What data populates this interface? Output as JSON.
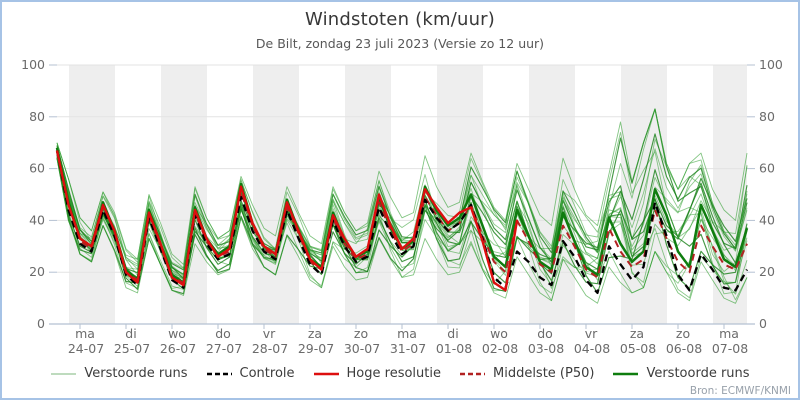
{
  "window": {
    "border_color": "#a6c3e6",
    "background": "#ffffff"
  },
  "header": {
    "title": "Windstoten (km/uur)",
    "subtitle": "De Bilt, zondag 23 juli 2023 (Versie zo 12 uur)"
  },
  "attribution": {
    "text": "Bron: ECMWF/KNMI"
  },
  "legend": {
    "items": [
      {
        "label": "Verstoorde runs",
        "color": "#a9cfa9",
        "dash": "",
        "width": 1.6
      },
      {
        "label": "Controle",
        "color": "#000000",
        "dash": "5 3",
        "width": 2.6
      },
      {
        "label": "Hoge resolutie",
        "color": "#dd0f0f",
        "dash": "",
        "width": 2.6
      },
      {
        "label": "Middelste (P50)",
        "color": "#b22222",
        "dash": "5 3",
        "width": 2.6
      },
      {
        "label": "Verstoorde runs",
        "color": "#0f7d0f",
        "dash": "",
        "width": 2.6
      }
    ]
  },
  "chart_data": {
    "type": "line",
    "title": "Windstoten (km/uur)",
    "subtitle": "De Bilt, zondag 23 juli 2023 (Versie zo 12 uur)",
    "ylabel": "km/uur",
    "ylim": [
      0,
      100
    ],
    "y_ticks": [
      0,
      20,
      40,
      60,
      80,
      100
    ],
    "hours_step": 6,
    "total_hours": 360,
    "first_day_boundary_hour": 12,
    "x_day_labels": [
      {
        "day": "ma",
        "date": "24-07"
      },
      {
        "day": "di",
        "date": "25-07"
      },
      {
        "day": "wo",
        "date": "26-07"
      },
      {
        "day": "do",
        "date": "27-07"
      },
      {
        "day": "vr",
        "date": "28-07"
      },
      {
        "day": "za",
        "date": "29-07"
      },
      {
        "day": "zo",
        "date": "30-07"
      },
      {
        "day": "ma",
        "date": "31-07"
      },
      {
        "day": "di",
        "date": "01-08"
      },
      {
        "day": "wo",
        "date": "02-08"
      },
      {
        "day": "do",
        "date": "03-08"
      },
      {
        "day": "vr",
        "date": "04-08"
      },
      {
        "day": "za",
        "date": "05-08"
      },
      {
        "day": "zo",
        "date": "06-08"
      },
      {
        "day": "ma",
        "date": "07-08"
      }
    ],
    "shaded_day_indexes": [
      0,
      2,
      4,
      6,
      8,
      10,
      12,
      14
    ],
    "series": {
      "hoge_resolutie": [
        67,
        46,
        33,
        30,
        46,
        36,
        20,
        16,
        43,
        31,
        18,
        15,
        44,
        33,
        26,
        29,
        53,
        39,
        30,
        27,
        47,
        36,
        25,
        21,
        42,
        33,
        26,
        29,
        50,
        38,
        29,
        33,
        52,
        45,
        39,
        43,
        45,
        32,
        16,
        13,
        40
      ],
      "controle": [
        67,
        44,
        31,
        28,
        44,
        34,
        19,
        15,
        41,
        29,
        17,
        14,
        42,
        31,
        25,
        27,
        49,
        36,
        28,
        25,
        44,
        33,
        23,
        19,
        40,
        30,
        24,
        26,
        45,
        35,
        27,
        30,
        48,
        41,
        36,
        39,
        46,
        33,
        18,
        14,
        28,
        24,
        18,
        15,
        32,
        26,
        17,
        12,
        30,
        23,
        17,
        22,
        47,
        34,
        19,
        13,
        27,
        21,
        14,
        13,
        21
      ],
      "middelste_p50": [
        67,
        45,
        32,
        29,
        45,
        35,
        20,
        17,
        42,
        30,
        18,
        16,
        43,
        32,
        26,
        28,
        51,
        38,
        29,
        26,
        45,
        35,
        24,
        21,
        41,
        31,
        25,
        27,
        47,
        36,
        28,
        31,
        49,
        42,
        36,
        39,
        46,
        34,
        24,
        20,
        40,
        32,
        23,
        20,
        38,
        30,
        21,
        18,
        37,
        28,
        22,
        25,
        44,
        33,
        24,
        20,
        38,
        30,
        23,
        21,
        31
      ],
      "verstoorde_run_highlight": [
        68,
        47,
        33,
        30,
        47,
        36,
        21,
        17,
        44,
        31,
        19,
        16,
        45,
        33,
        27,
        30,
        54,
        39,
        30,
        27,
        48,
        36,
        25,
        22,
        43,
        32,
        26,
        28,
        49,
        37,
        29,
        32,
        53,
        44,
        38,
        41,
        50,
        38,
        26,
        22,
        44,
        34,
        24,
        21,
        43,
        32,
        22,
        19,
        41,
        31,
        24,
        28,
        52,
        42,
        28,
        22,
        46,
        36,
        25,
        22,
        37
      ],
      "ensemble_max": [
        70,
        56,
        41,
        36,
        51,
        43,
        29,
        25,
        50,
        39,
        27,
        23,
        53,
        41,
        33,
        36,
        57,
        46,
        37,
        34,
        53,
        43,
        34,
        31,
        53,
        43,
        36,
        39,
        59,
        49,
        41,
        43,
        65,
        53,
        45,
        47,
        66,
        55,
        45,
        40,
        62,
        52,
        42,
        38,
        64,
        52,
        42,
        38,
        58,
        78,
        55,
        70,
        83,
        62,
        52,
        62,
        66,
        52,
        44,
        40,
        66
      ],
      "ensemble_min": [
        64,
        40,
        27,
        24,
        38,
        28,
        14,
        12,
        33,
        23,
        13,
        11,
        31,
        24,
        19,
        21,
        41,
        29,
        22,
        19,
        34,
        26,
        17,
        14,
        30,
        22,
        17,
        18,
        33,
        25,
        18,
        19,
        33,
        25,
        19,
        20,
        31,
        21,
        12,
        10,
        26,
        19,
        12,
        9,
        25,
        18,
        11,
        8,
        22,
        16,
        12,
        14,
        28,
        20,
        12,
        9,
        24,
        17,
        10,
        8,
        18
      ]
    },
    "ensemble_style_members": [
      {
        "f0": 0.5,
        "f1": 0.55,
        "amp": 0.18,
        "per": 54,
        "ph": 0.0
      },
      {
        "f0": 0.3,
        "f1": 0.7,
        "amp": 0.22,
        "per": 66,
        "ph": 1.1
      },
      {
        "f0": 0.7,
        "f1": 0.3,
        "amp": 0.2,
        "per": 48,
        "ph": 2.2
      },
      {
        "f0": 0.15,
        "f1": 0.6,
        "amp": 0.25,
        "per": 72,
        "ph": 3.0
      },
      {
        "f0": 0.85,
        "f1": 0.45,
        "amp": 0.15,
        "per": 60,
        "ph": 4.2
      },
      {
        "f0": 0.4,
        "f1": 0.2,
        "amp": 0.28,
        "per": 84,
        "ph": 0.7
      },
      {
        "f0": 0.6,
        "f1": 0.85,
        "amp": 0.22,
        "per": 78,
        "ph": 1.9
      },
      {
        "f0": 0.25,
        "f1": 0.35,
        "amp": 0.3,
        "per": 42,
        "ph": 2.8
      },
      {
        "f0": 0.75,
        "f1": 0.65,
        "amp": 0.17,
        "per": 90,
        "ph": 3.7
      },
      {
        "f0": 0.1,
        "f1": 0.4,
        "amp": 0.24,
        "per": 58,
        "ph": 5.0
      },
      {
        "f0": 0.9,
        "f1": 0.7,
        "amp": 0.2,
        "per": 70,
        "ph": 0.4
      },
      {
        "f0": 0.45,
        "f1": 0.8,
        "amp": 0.26,
        "per": 46,
        "ph": 1.5
      },
      {
        "f0": 0.55,
        "f1": 0.25,
        "amp": 0.19,
        "per": 62,
        "ph": 2.5
      },
      {
        "f0": 0.35,
        "f1": 0.9,
        "amp": 0.23,
        "per": 86,
        "ph": 3.4
      },
      {
        "f0": 0.65,
        "f1": 0.1,
        "amp": 0.27,
        "per": 52,
        "ph": 4.6
      },
      {
        "f0": 0.2,
        "f1": 0.75,
        "amp": 0.21,
        "per": 96,
        "ph": 5.5
      },
      {
        "f0": 0.8,
        "f1": 0.5,
        "amp": 0.25,
        "per": 40,
        "ph": 0.9
      },
      {
        "f0": 0.5,
        "f1": 0.15,
        "amp": 0.16,
        "per": 74,
        "ph": 2.0
      }
    ],
    "colors": {
      "ensemble": "#2f9e2f",
      "ensemble_dark": "#168016",
      "highlight": "#0f7d0f",
      "controle": "#000000",
      "hoge_resolutie": "#dd0f0f",
      "middelste_p50": "#b22222",
      "band": "#eeeeee",
      "grid": "#e3e3e3",
      "axis": "#b5c1d2",
      "tick_text": "#6b6b6b"
    },
    "legend_position": "bottom"
  }
}
